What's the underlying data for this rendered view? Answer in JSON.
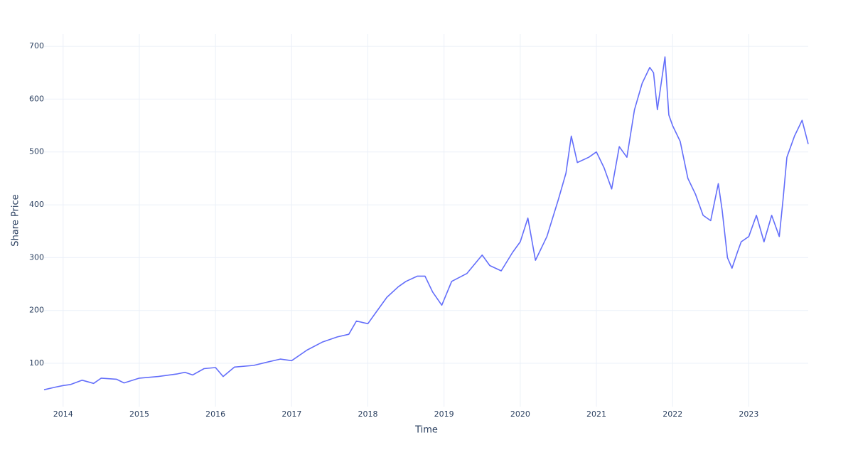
{
  "chart_data": {
    "type": "line",
    "x_label": "Time",
    "y_label": "Share Price",
    "x": [
      2013.75,
      2013.9,
      2014.0,
      2014.1,
      2014.25,
      2014.4,
      2014.5,
      2014.7,
      2014.8,
      2015.0,
      2015.25,
      2015.5,
      2015.6,
      2015.7,
      2015.85,
      2016.0,
      2016.1,
      2016.25,
      2016.5,
      2016.7,
      2016.85,
      2017.0,
      2017.2,
      2017.4,
      2017.6,
      2017.75,
      2017.85,
      2018.0,
      2018.1,
      2018.25,
      2018.4,
      2018.5,
      2018.65,
      2018.75,
      2018.85,
      2018.97,
      2019.1,
      2019.3,
      2019.5,
      2019.6,
      2019.75,
      2019.9,
      2020.0,
      2020.1,
      2020.2,
      2020.35,
      2020.5,
      2020.6,
      2020.67,
      2020.75,
      2020.9,
      2021.0,
      2021.1,
      2021.2,
      2021.3,
      2021.4,
      2021.5,
      2021.6,
      2021.7,
      2021.75,
      2021.8,
      2021.9,
      2021.95,
      2022.0,
      2022.1,
      2022.2,
      2022.3,
      2022.4,
      2022.5,
      2022.6,
      2022.65,
      2022.72,
      2022.78,
      2022.85,
      2022.9,
      2023.0,
      2023.1,
      2023.2,
      2023.3,
      2023.4,
      2023.45,
      2023.5,
      2023.6,
      2023.7,
      2023.78
    ],
    "series": [
      {
        "name": "Share Price",
        "color": "#636efa",
        "values": [
          50,
          55,
          58,
          60,
          68,
          62,
          72,
          70,
          63,
          72,
          75,
          80,
          83,
          78,
          90,
          92,
          75,
          93,
          96,
          103,
          108,
          105,
          125,
          140,
          150,
          155,
          180,
          175,
          195,
          225,
          245,
          255,
          265,
          265,
          235,
          210,
          255,
          270,
          305,
          285,
          275,
          310,
          330,
          375,
          295,
          340,
          410,
          460,
          530,
          480,
          490,
          500,
          470,
          430,
          510,
          490,
          580,
          630,
          660,
          650,
          580,
          680,
          570,
          550,
          520,
          450,
          420,
          380,
          370,
          440,
          390,
          300,
          280,
          310,
          330,
          340,
          380,
          330,
          380,
          340,
          410,
          490,
          530,
          560,
          515
        ]
      }
    ],
    "xlim": [
      2013.75,
      2023.78
    ],
    "xticks": [
      2014,
      2015,
      2016,
      2017,
      2018,
      2019,
      2020,
      2021,
      2022,
      2023
    ],
    "ylim": [
      18,
      723
    ],
    "yticks": [
      100,
      200,
      300,
      400,
      500,
      600,
      700
    ],
    "grid": true
  }
}
